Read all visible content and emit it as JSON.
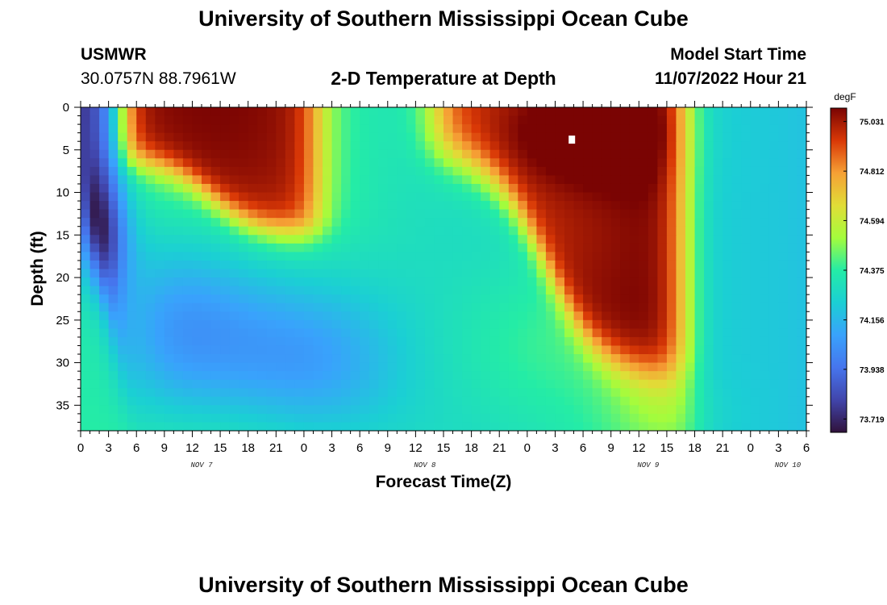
{
  "header": {
    "title": "University of Southern Mississippi Ocean Cube",
    "station": "USMWR",
    "coords": "30.0757N  88.7961W",
    "subtitle": "2-D Temperature at Depth",
    "model_label": "Model Start Time",
    "model_time": "11/07/2022 Hour 21"
  },
  "footer": {
    "title": "University of Southern Mississippi Ocean Cube"
  },
  "chart_data": {
    "type": "heatmap",
    "title": "2-D Temperature at Depth",
    "xlabel": "Forecast Time(Z)",
    "ylabel": "Depth (ft)",
    "x_range_hours": [
      0,
      78
    ],
    "ylim": [
      0,
      38
    ],
    "y_ticks": [
      "0",
      "5",
      "10",
      "15",
      "20",
      "25",
      "30",
      "35"
    ],
    "y_tick_values": [
      0,
      5,
      10,
      15,
      20,
      25,
      30,
      35
    ],
    "x_ticks": [
      "0",
      "3",
      "6",
      "9",
      "12",
      "15",
      "18",
      "21",
      "0",
      "3",
      "6",
      "9",
      "12",
      "15",
      "18",
      "21",
      "0",
      "3",
      "6",
      "9",
      "12",
      "15",
      "18",
      "21",
      "0",
      "3",
      "6"
    ],
    "date_labels": [
      {
        "label": "NOV 7",
        "hour": 13
      },
      {
        "label": "NOV 8",
        "hour": 37
      },
      {
        "label": "NOV 9",
        "hour": 61
      },
      {
        "label": "NOV 10",
        "hour": 76
      }
    ],
    "colorbar": {
      "unit": "degF",
      "ticks": [
        "75.031",
        "74.812",
        "74.594",
        "74.375",
        "74.156",
        "73.938",
        "73.719"
      ],
      "min": 73.66,
      "max": 75.09
    },
    "max_marker": {
      "hour": 52.8,
      "depth": 3.8
    },
    "temperature_regions": [
      {
        "name": "cold wedge near surface",
        "hours": [
          0,
          4
        ],
        "depth": [
          0,
          38
        ],
        "value": 73.75
      },
      {
        "name": "warm surface pool 1",
        "hours": [
          5,
          27
        ],
        "depth": [
          0,
          16
        ],
        "value": 74.68
      },
      {
        "name": "warm surface pool 2 (max)",
        "hours": [
          39,
          64
        ],
        "depth": [
          0,
          33
        ],
        "value": 75.02
      },
      {
        "name": "mid-column warm",
        "hours": [
          40,
          64
        ],
        "depth": [
          20,
          38
        ],
        "value": 74.35
      },
      {
        "name": "late cool band",
        "hours": [
          68,
          78
        ],
        "depth": [
          0,
          38
        ],
        "value": 74.17
      }
    ]
  }
}
